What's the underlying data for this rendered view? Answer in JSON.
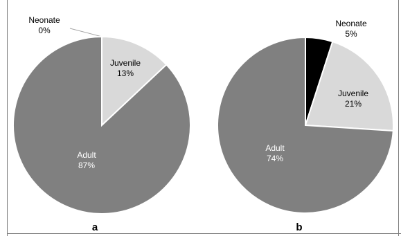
{
  "chart_data": [
    {
      "type": "pie",
      "panel_label": "a",
      "slices": [
        {
          "label": "Neonate",
          "value": 0,
          "value_label": "0%",
          "color": "#000000"
        },
        {
          "label": "Juvenile",
          "value": 13,
          "value_label": "13%",
          "color": "#d9d9d9"
        },
        {
          "label": "Adult",
          "value": 87,
          "value_label": "87%",
          "color": "#808080"
        }
      ]
    },
    {
      "type": "pie",
      "panel_label": "b",
      "slices": [
        {
          "label": "Neonate",
          "value": 5,
          "value_label": "5%",
          "color": "#000000"
        },
        {
          "label": "Juvenile",
          "value": 21,
          "value_label": "21%",
          "color": "#d9d9d9"
        },
        {
          "label": "Adult",
          "value": 74,
          "value_label": "74%",
          "color": "#808080"
        }
      ]
    }
  ]
}
